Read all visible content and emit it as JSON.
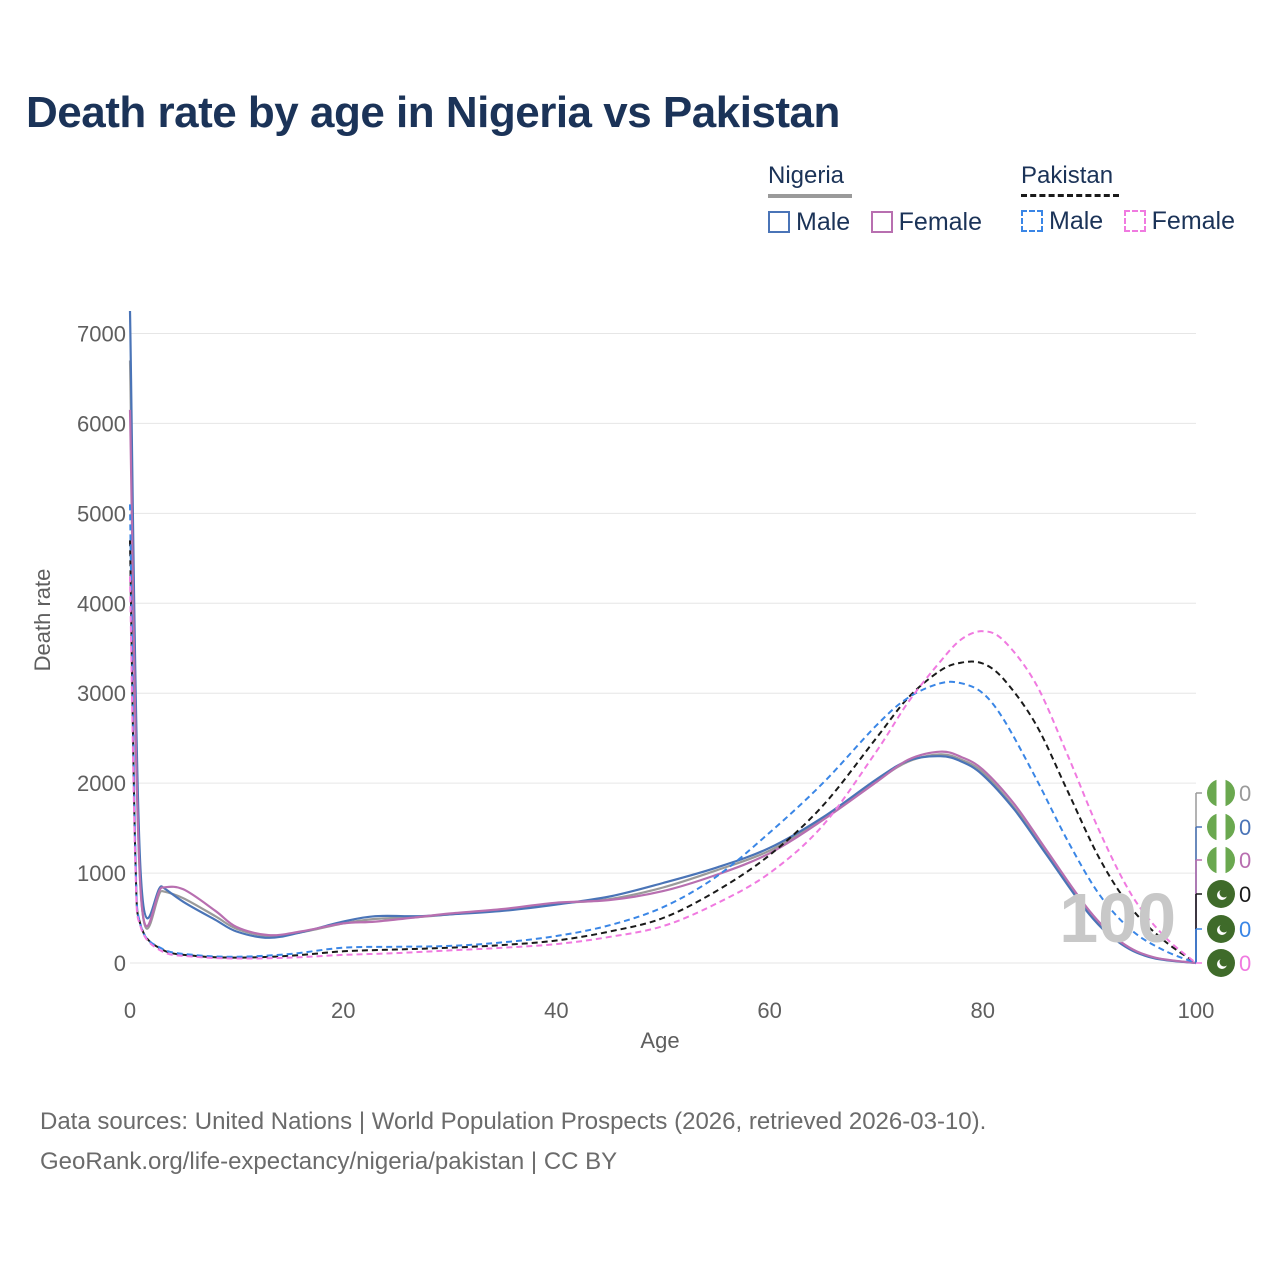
{
  "title": "Death rate by age in Nigeria vs Pakistan",
  "legend": {
    "groups": [
      {
        "name": "Nigeria",
        "items": [
          {
            "label": "Male",
            "color": "#4a74b7",
            "dash": false
          },
          {
            "label": "Female",
            "color": "#b86fb0",
            "dash": false
          }
        ]
      },
      {
        "name": "Pakistan",
        "items": [
          {
            "label": "Male",
            "color": "#3a86e6",
            "dash": true
          },
          {
            "label": "Female",
            "color": "#f07ae0",
            "dash": true
          }
        ]
      }
    ]
  },
  "chart_data": {
    "type": "line",
    "xlabel": "Age",
    "ylabel": "Death rate",
    "xlim": [
      0,
      100
    ],
    "ylim": [
      0,
      7250
    ],
    "xticks": [
      0,
      20,
      40,
      60,
      80,
      100
    ],
    "yticks": [
      0,
      1000,
      2000,
      3000,
      4000,
      5000,
      6000,
      7000
    ],
    "current_age_label": "100",
    "series": [
      {
        "name": "Nigeria Total",
        "color": "#9a9a9a",
        "dash": false,
        "end_value": "0",
        "x": [
          0,
          1,
          3,
          5,
          8,
          10,
          13,
          16,
          20,
          23,
          27,
          30,
          35,
          40,
          45,
          50,
          55,
          60,
          65,
          70,
          73,
          76,
          78,
          80,
          83,
          86,
          90,
          93,
          96,
          100
        ],
        "y": [
          6700,
          820,
          800,
          720,
          520,
          380,
          300,
          340,
          440,
          490,
          510,
          540,
          590,
          660,
          710,
          840,
          1030,
          1250,
          1610,
          2020,
          2240,
          2320,
          2260,
          2120,
          1720,
          1220,
          560,
          220,
          60,
          0
        ]
      },
      {
        "name": "Nigeria Male",
        "color": "#4a74b7",
        "dash": false,
        "end_value": "0",
        "x": [
          0,
          1,
          3,
          5,
          8,
          10,
          13,
          16,
          20,
          23,
          27,
          30,
          35,
          40,
          45,
          50,
          55,
          60,
          65,
          70,
          73,
          76,
          78,
          80,
          83,
          86,
          90,
          93,
          96,
          100
        ],
        "y": [
          7250,
          1000,
          850,
          680,
          480,
          350,
          280,
          340,
          460,
          520,
          520,
          540,
          580,
          650,
          740,
          890,
          1060,
          1280,
          1620,
          2040,
          2250,
          2300,
          2240,
          2090,
          1700,
          1200,
          540,
          210,
          55,
          0
        ]
      },
      {
        "name": "Nigeria Female",
        "color": "#b86fb0",
        "dash": false,
        "end_value": "0",
        "x": [
          0,
          1,
          3,
          5,
          8,
          10,
          13,
          16,
          20,
          23,
          27,
          30,
          35,
          40,
          45,
          50,
          55,
          60,
          65,
          70,
          73,
          76,
          78,
          80,
          83,
          86,
          90,
          93,
          96,
          100
        ],
        "y": [
          6150,
          790,
          840,
          820,
          580,
          400,
          310,
          350,
          440,
          460,
          510,
          550,
          600,
          670,
          700,
          800,
          980,
          1220,
          1590,
          2010,
          2260,
          2350,
          2290,
          2150,
          1760,
          1250,
          580,
          230,
          65,
          0
        ]
      },
      {
        "name": "Pakistan Total",
        "color": "#1a1a1a",
        "dash": true,
        "end_value": "0",
        "x": [
          0,
          0.5,
          1,
          3,
          6,
          10,
          15,
          20,
          25,
          30,
          35,
          40,
          45,
          50,
          55,
          60,
          65,
          70,
          73,
          76,
          78,
          80,
          82,
          85,
          88,
          91,
          94,
          97,
          100
        ],
        "y": [
          4700,
          1200,
          420,
          150,
          80,
          60,
          80,
          130,
          150,
          170,
          200,
          250,
          350,
          500,
          800,
          1200,
          1750,
          2500,
          2950,
          3250,
          3340,
          3330,
          3150,
          2650,
          1900,
          1150,
          600,
          250,
          0
        ]
      },
      {
        "name": "Pakistan Male",
        "color": "#3a86e6",
        "dash": true,
        "end_value": "0",
        "x": [
          0,
          0.5,
          1,
          3,
          6,
          10,
          15,
          20,
          25,
          30,
          35,
          40,
          45,
          50,
          55,
          60,
          65,
          70,
          73,
          76,
          78,
          80,
          82,
          85,
          88,
          91,
          94,
          97,
          100
        ],
        "y": [
          5100,
          1300,
          420,
          160,
          90,
          70,
          100,
          170,
          180,
          190,
          230,
          300,
          420,
          620,
          960,
          1450,
          2000,
          2640,
          2950,
          3110,
          3110,
          3000,
          2700,
          2050,
          1350,
          750,
          360,
          140,
          0
        ]
      },
      {
        "name": "Pakistan Female",
        "color": "#f07ae0",
        "dash": true,
        "end_value": "0",
        "x": [
          0,
          0.5,
          1,
          3,
          6,
          10,
          15,
          20,
          25,
          30,
          35,
          40,
          45,
          50,
          55,
          60,
          65,
          70,
          73,
          76,
          78,
          80,
          82,
          85,
          88,
          91,
          94,
          97,
          100
        ],
        "y": [
          4300,
          1100,
          400,
          130,
          70,
          50,
          60,
          90,
          110,
          140,
          170,
          210,
          290,
          410,
          660,
          1000,
          1530,
          2350,
          2900,
          3350,
          3600,
          3690,
          3580,
          3100,
          2300,
          1450,
          750,
          300,
          0
        ]
      }
    ]
  },
  "footer": {
    "line1": "Data sources: United Nations | World Population Prospects (2026, retrieved 2026-03-10).",
    "line2": "GeoRank.org/life-expectancy/nigeria/pakistan | CC BY"
  }
}
